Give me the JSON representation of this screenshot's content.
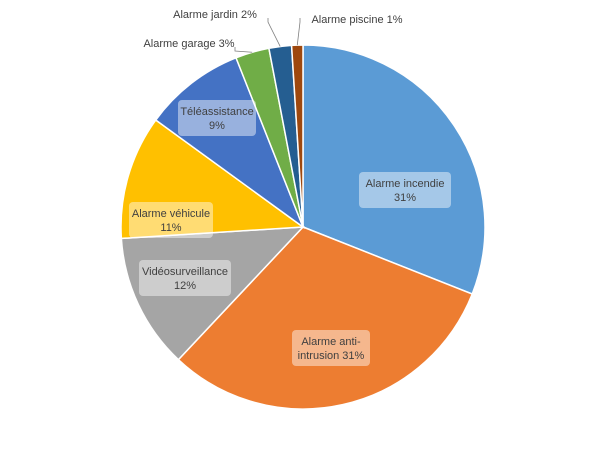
{
  "chart_data": {
    "type": "pie",
    "title": "",
    "categories": [
      "Alarme incendie",
      "Alarme anti-intrusion",
      "Vidéosurveillance",
      "Alarme véhicule",
      "Téléassistance",
      "Alarme garage",
      "Alarme jardin",
      "Alarme piscine"
    ],
    "values": [
      31,
      31,
      12,
      11,
      9,
      3,
      2,
      1
    ],
    "value_labels": [
      "31%",
      "31%",
      "12%",
      "11%",
      "9%",
      "3%",
      "2%",
      "1%"
    ],
    "colors": [
      "#5b9bd5",
      "#ed7d31",
      "#a5a5a5",
      "#ffc000",
      "#4472c4",
      "#70ad47",
      "#255e91",
      "#9e480e"
    ],
    "legend": "none",
    "start_angle_deg": 0,
    "direction": "clockwise"
  }
}
